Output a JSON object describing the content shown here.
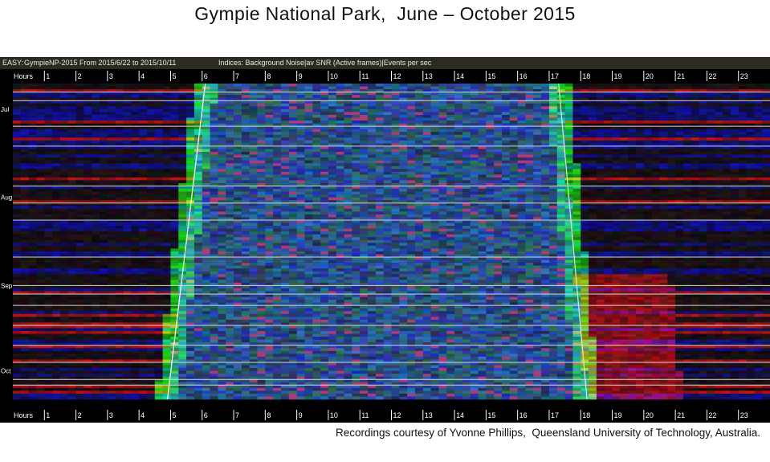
{
  "page": {
    "title": "Gympie National Park,  June – October 2015",
    "credit": "Recordings courtesy of Yvonne Phillips,  Queensland University of Technology, Australia."
  },
  "info_bar": {
    "label": "EASY:",
    "site": "GympieNP-2015",
    "range": "From 2015/6/22 to 2015/10/11",
    "indices": "Indices: Background Noise|av SNR (Active frames)|Events per sec"
  },
  "chart_data": {
    "type": "heatmap",
    "x_axis_label": "Hours",
    "x_ticks": [
      "1",
      "2",
      "3",
      "4",
      "5",
      "6",
      "7",
      "8",
      "9",
      "10",
      "11",
      "12",
      "13",
      "14",
      "15",
      "16",
      "17",
      "18",
      "19",
      "20",
      "21",
      "22",
      "23"
    ],
    "x_range": [
      0,
      24
    ],
    "y_start_date": "2015/6/22",
    "y_end_date": "2015/10/11",
    "y_month_labels": [
      {
        "label": "Jul",
        "date": "2015/7/1"
      },
      {
        "label": "Aug",
        "date": "2015/8/1"
      },
      {
        "label": "Sep",
        "date": "2015/9/1"
      },
      {
        "label": "Oct",
        "date": "2015/10/1"
      }
    ],
    "color_channels": {
      "red": "Background Noise",
      "green": "av SNR (Active frames)",
      "blue": "Events per sec"
    },
    "sunrise_line": {
      "start": 6.1,
      "end": 4.9
    },
    "sunset_line": {
      "start": 17.3,
      "end": 18.2
    },
    "white_row_lines": [
      "2015/6/25",
      "2015/6/28",
      "2015/7/7",
      "2015/7/14",
      "2015/7/28",
      "2015/8/3",
      "2015/8/9",
      "2015/8/22",
      "2015/9/1",
      "2015/9/4",
      "2015/9/8",
      "2015/9/15",
      "2015/9/22",
      "2015/9/28",
      "2015/10/4",
      "2015/10/6"
    ],
    "grid": false,
    "colors": {
      "sunrise_line": "#ffffff",
      "sunset_line": "#e8e8e8",
      "row_lines": "#d8d8d8",
      "tick_bar": "#000000"
    }
  }
}
